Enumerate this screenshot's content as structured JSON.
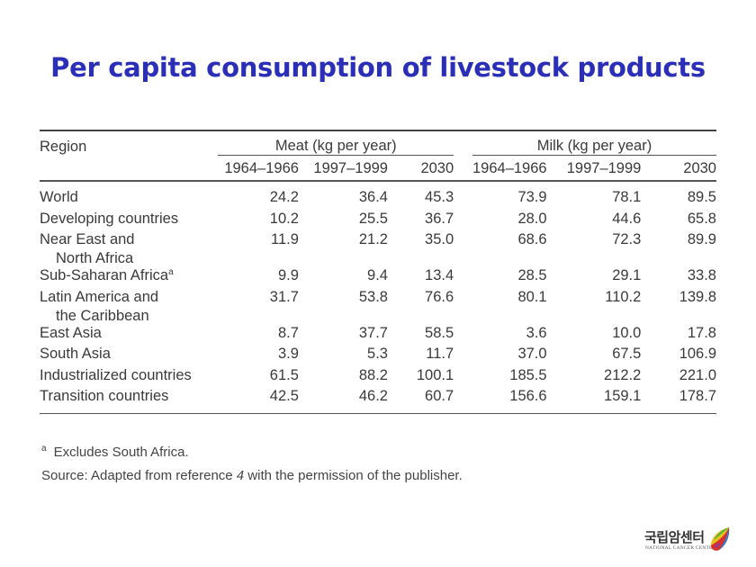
{
  "title": "Per capita consumption of livestock products",
  "table": {
    "region_header": "Region",
    "groups": [
      {
        "label": "Meat (kg per year)",
        "periods": [
          "1964–1966",
          "1997–1999",
          "2030"
        ]
      },
      {
        "label": "Milk (kg per year)",
        "periods": [
          "1964–1966",
          "1997–1999",
          "2030"
        ]
      }
    ],
    "rows": [
      {
        "region": "World",
        "region_line2": "",
        "footnote": "",
        "values": [
          "24.2",
          "36.4",
          "45.3",
          "73.9",
          "78.1",
          "89.5"
        ]
      },
      {
        "region": "Developing countries",
        "region_line2": "",
        "footnote": "",
        "values": [
          "10.2",
          "25.5",
          "36.7",
          "28.0",
          "44.6",
          "65.8"
        ]
      },
      {
        "region": "Near East and",
        "region_line2": "North Africa",
        "footnote": "",
        "values": [
          "11.9",
          "21.2",
          "35.0",
          "68.6",
          "72.3",
          "89.9"
        ]
      },
      {
        "region": "Sub-Saharan Africa",
        "region_line2": "",
        "footnote": "a",
        "values": [
          "9.9",
          "9.4",
          "13.4",
          "28.5",
          "29.1",
          "33.8"
        ]
      },
      {
        "region": "Latin America and",
        "region_line2": "the Caribbean",
        "footnote": "",
        "values": [
          "31.7",
          "53.8",
          "76.6",
          "80.1",
          "110.2",
          "139.8"
        ]
      },
      {
        "region": "East Asia",
        "region_line2": "",
        "footnote": "",
        "values": [
          "8.7",
          "37.7",
          "58.5",
          "3.6",
          "10.0",
          "17.8"
        ]
      },
      {
        "region": "South Asia",
        "region_line2": "",
        "footnote": "",
        "values": [
          "3.9",
          "5.3",
          "11.7",
          "37.0",
          "67.5",
          "106.9"
        ]
      },
      {
        "region": "Industrialized countries",
        "region_line2": "",
        "footnote": "",
        "values": [
          "61.5",
          "88.2",
          "100.1",
          "185.5",
          "212.2",
          "221.0"
        ]
      },
      {
        "region": "Transition countries",
        "region_line2": "",
        "footnote": "",
        "values": [
          "42.5",
          "46.2",
          "60.7",
          "156.6",
          "159.1",
          "178.7"
        ]
      }
    ]
  },
  "footnote": {
    "marker": "a",
    "text": "Excludes South Africa."
  },
  "source": {
    "prefix": "Source: Adapted from reference ",
    "ref": "4",
    "suffix": " with the permission of the publisher."
  },
  "logo": {
    "korean": "국립암센터",
    "english": "NATIONAL CANCER CENTER"
  },
  "colors": {
    "title": "#2b2fb8"
  }
}
